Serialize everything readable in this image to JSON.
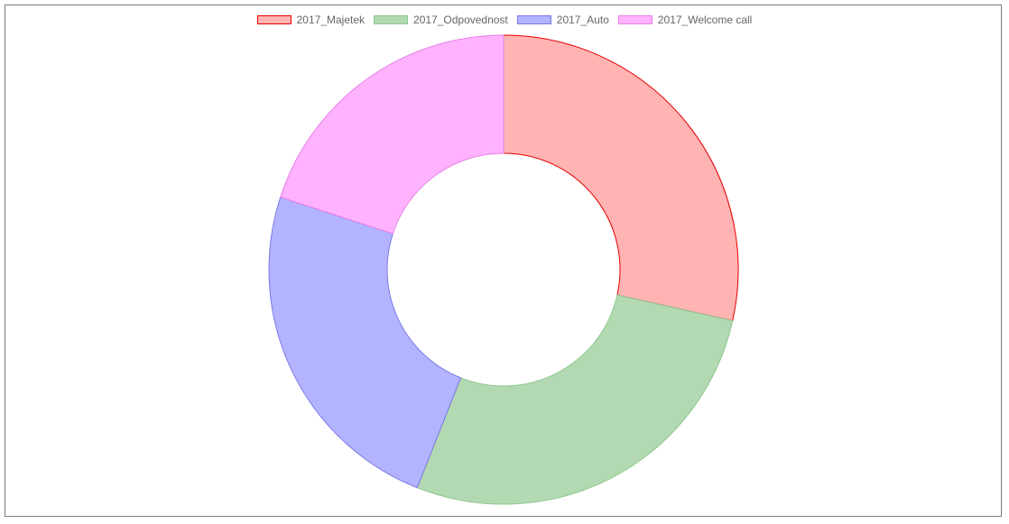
{
  "chart_data": {
    "type": "pie",
    "variant": "doughnut",
    "title": "",
    "legend_position": "top",
    "series": [
      {
        "name": "2017_Majetek",
        "value": 28.5,
        "fill": "#ffb3b3",
        "stroke": "#e60000"
      },
      {
        "name": "2017_Odpovednost",
        "value": 27.5,
        "fill": "#b3d9b3",
        "stroke": "#8cc98c"
      },
      {
        "name": "2017_Auto",
        "value": 24.0,
        "fill": "#b3b3ff",
        "stroke": "#7a7ae6"
      },
      {
        "name": "2017_Welcome call",
        "value": 20.0,
        "fill": "#ffb3ff",
        "stroke": "#e680e6"
      }
    ]
  }
}
